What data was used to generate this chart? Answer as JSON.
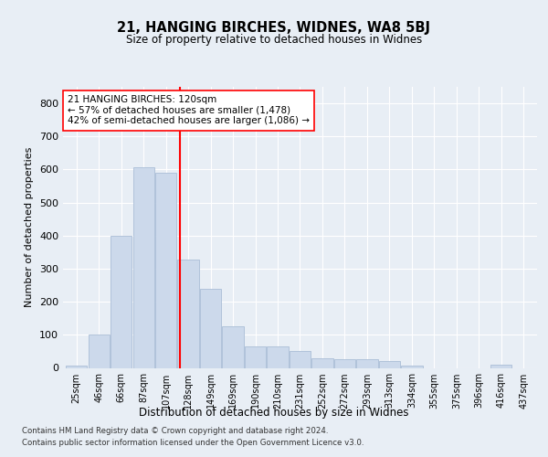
{
  "title1": "21, HANGING BIRCHES, WIDNES, WA8 5BJ",
  "title2": "Size of property relative to detached houses in Widnes",
  "xlabel": "Distribution of detached houses by size in Widnes",
  "ylabel": "Number of detached properties",
  "bar_labels": [
    "25sqm",
    "46sqm",
    "66sqm",
    "87sqm",
    "107sqm",
    "128sqm",
    "149sqm",
    "169sqm",
    "190sqm",
    "210sqm",
    "231sqm",
    "252sqm",
    "272sqm",
    "293sqm",
    "313sqm",
    "334sqm",
    "355sqm",
    "375sqm",
    "396sqm",
    "416sqm",
    "437sqm"
  ],
  "bar_heights": [
    8,
    102,
    400,
    608,
    590,
    328,
    238,
    125,
    65,
    65,
    50,
    28,
    25,
    25,
    20,
    8,
    0,
    0,
    0,
    10,
    0
  ],
  "bar_color": "#ccd9eb",
  "bar_edge_color": "#aabdd6",
  "subject_label": "21 HANGING BIRCHES: 120sqm",
  "annotation_line1": "← 57% of detached houses are smaller (1,478)",
  "annotation_line2": "42% of semi-detached houses are larger (1,086) →",
  "ylim": [
    0,
    850
  ],
  "yticks": [
    0,
    100,
    200,
    300,
    400,
    500,
    600,
    700,
    800
  ],
  "footer1": "Contains HM Land Registry data © Crown copyright and database right 2024.",
  "footer2": "Contains public sector information licensed under the Open Government Licence v3.0.",
  "background_color": "#e8eef5",
  "plot_bg_color": "#e8eef5"
}
